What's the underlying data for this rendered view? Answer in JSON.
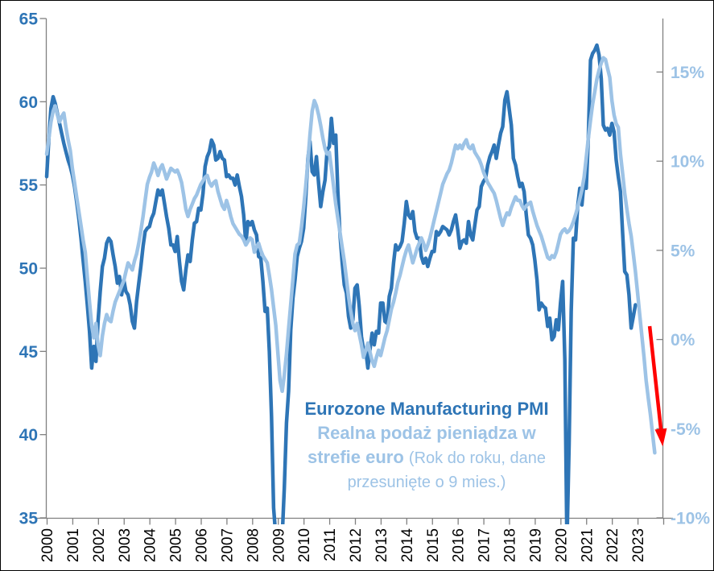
{
  "annotation": {
    "line1": "Eurozone Manufacturing PMI",
    "line2": "Realna podaż pieniądza w",
    "line3_bold": "strefie euro ",
    "line3_regular": "(Rok do roku, dane",
    "line4": "przesunięte o 9 mies.)"
  },
  "chart_data": {
    "type": "line",
    "background": "#FFFFFF",
    "frame_border": "#000000",
    "axis_line_color": "#808080",
    "grid": "off",
    "legend_position": "none (in-plot text annotation)",
    "left_axis": {
      "label_color": "#2E75B6",
      "min": 35,
      "max": 65,
      "ticks": [
        65,
        60,
        55,
        50,
        45,
        40,
        35
      ]
    },
    "right_axis": {
      "label_color": "#9DC3E6",
      "min": -10,
      "max": 18,
      "tick_values": [
        15,
        10,
        5,
        0,
        -5,
        -10
      ],
      "tick_labels": [
        "15%",
        "10%",
        "5%",
        "0%",
        "-5%",
        "-10%"
      ]
    },
    "x_axis": {
      "label_color": "#000000",
      "labels": [
        "2000",
        "2001",
        "2002",
        "2003",
        "2004",
        "2005",
        "2006",
        "2007",
        "2008",
        "2009",
        "2010",
        "2011",
        "2012",
        "2013",
        "2014",
        "2015",
        "2016",
        "2017",
        "2018",
        "2019",
        "2020",
        "2021",
        "2022",
        "2023"
      ],
      "tick_years": [
        2000,
        2001,
        2002,
        2003,
        2004,
        2005,
        2006,
        2007,
        2008,
        2009,
        2010,
        2011,
        2012,
        2013,
        2014,
        2015,
        2016,
        2017,
        2018,
        2019,
        2020,
        2021,
        2022,
        2023,
        2024
      ],
      "start": 2000,
      "end": 2024
    },
    "series": [
      {
        "name": "Eurozone Manufacturing PMI",
        "axis": "left",
        "color": "#2E75B6",
        "start_year": 2000.0,
        "frequency": "monthly",
        "values": [
          55.5,
          57.8,
          59.6,
          60.3,
          59.9,
          59.3,
          58.7,
          58.1,
          57.5,
          57.0,
          56.5,
          56.1,
          55.6,
          54.9,
          54.0,
          53.0,
          51.8,
          50.5,
          49.2,
          47.8,
          46.2,
          44.0,
          45.3,
          44.4,
          46.8,
          48.6,
          50.1,
          50.6,
          51.5,
          51.8,
          51.6,
          50.8,
          50.1,
          49.1,
          49.5,
          48.4,
          49.3,
          48.6,
          48.4,
          47.8,
          46.8,
          46.4,
          48.0,
          49.1,
          50.1,
          51.3,
          52.2,
          52.4,
          52.5,
          53.0,
          53.3,
          54.0,
          54.7,
          54.4,
          54.7,
          53.9,
          53.1,
          52.4,
          51.4,
          51.4,
          51.0,
          51.9,
          50.4,
          49.2,
          48.7,
          49.9,
          50.8,
          50.4,
          51.7,
          52.7,
          52.8,
          53.6,
          53.5,
          54.5,
          56.1,
          56.7,
          57.0,
          57.7,
          57.4,
          56.5,
          56.6,
          57.0,
          56.6,
          56.5,
          55.5,
          55.6,
          55.4,
          55.4,
          55.0,
          55.6,
          54.9,
          54.3,
          53.2,
          51.5,
          52.8,
          52.6,
          52.8,
          52.3,
          52.0,
          50.7,
          50.6,
          49.2,
          47.4,
          47.6,
          45.0,
          41.1,
          35.6,
          33.9,
          34.4,
          33.5,
          33.9,
          36.8,
          40.7,
          42.6,
          46.3,
          48.2,
          49.3,
          50.7,
          51.2,
          51.6,
          52.4,
          54.2,
          56.6,
          57.6,
          55.8,
          55.6,
          56.7,
          55.1,
          53.7,
          54.6,
          55.3,
          57.1,
          57.3,
          59.0,
          57.5,
          58.0,
          54.6,
          52.0,
          50.4,
          49.0,
          48.5,
          47.1,
          46.4,
          46.9,
          48.8,
          49.0,
          47.7,
          45.9,
          45.1,
          45.1,
          44.0,
          45.1,
          46.1,
          45.4,
          46.2,
          46.1,
          47.9,
          47.9,
          46.8,
          46.7,
          48.3,
          48.8,
          50.3,
          51.4,
          51.1,
          51.3,
          51.6,
          52.7,
          54.0,
          53.2,
          53.0,
          53.4,
          52.2,
          51.8,
          51.8,
          50.7,
          50.3,
          50.6,
          50.1,
          50.6,
          51.0,
          51.0,
          52.2,
          52.0,
          52.2,
          52.5,
          52.4,
          52.3,
          52.0,
          52.3,
          52.8,
          53.2,
          52.3,
          51.2,
          51.6,
          51.7,
          51.5,
          52.8,
          52.0,
          51.7,
          52.6,
          53.5,
          53.7,
          54.9,
          55.2,
          55.4,
          56.2,
          56.7,
          57.0,
          57.4,
          56.6,
          57.4,
          58.1,
          58.5,
          60.1,
          60.6,
          59.6,
          58.6,
          56.6,
          56.2,
          55.5,
          54.9,
          55.1,
          54.6,
          53.2,
          52.0,
          51.8,
          51.4,
          50.5,
          49.3,
          47.5,
          47.9,
          47.7,
          47.6,
          46.5,
          47.0,
          45.7,
          45.9,
          46.9,
          46.3,
          47.9,
          49.2,
          44.5,
          33.4,
          39.4,
          47.4,
          51.8,
          51.7,
          53.7,
          54.8,
          53.8,
          55.2,
          54.8,
          57.9,
          62.5,
          62.9,
          63.1,
          63.4,
          62.8,
          61.4,
          58.6,
          58.3,
          58.4,
          58.0,
          58.7,
          58.2,
          56.5,
          55.5,
          54.6,
          52.1,
          49.8,
          49.6,
          48.4,
          46.4,
          47.1,
          47.8
        ]
      },
      {
        "name": "Realna podaż pieniądza w strefie euro (Rok do roku, dane przesunięte o 9 mies.)",
        "axis": "right",
        "color": "#9DC3E6",
        "start_year": 2000.0,
        "frequency": "monthly",
        "values": [
          10.4,
          11.3,
          12.2,
          12.8,
          13.1,
          12.6,
          12.2,
          12.5,
          12.7,
          11.9,
          11.2,
          10.6,
          9.6,
          8.8,
          8.0,
          7.2,
          6.4,
          5.6,
          4.9,
          3.5,
          2.1,
          0.8,
          0.1,
          0.9,
          -0.3,
          -0.9,
          0.2,
          0.9,
          1.4,
          1.1,
          1.0,
          1.6,
          2.1,
          2.4,
          2.7,
          3.0,
          3.3,
          3.8,
          4.3,
          4.1,
          3.9,
          4.4,
          4.8,
          5.4,
          6.1,
          6.9,
          7.8,
          8.7,
          9.1,
          9.4,
          9.9,
          9.6,
          9.2,
          9.6,
          9.8,
          9.4,
          9.0,
          9.3,
          9.6,
          9.5,
          9.4,
          9.5,
          9.2,
          8.8,
          8.1,
          7.3,
          6.9,
          7.3,
          7.6,
          7.9,
          8.1,
          8.4,
          8.7,
          8.9,
          9.1,
          9.2,
          8.8,
          8.6,
          8.8,
          8.9,
          8.3,
          7.9,
          7.5,
          7.3,
          7.8,
          7.4,
          6.9,
          6.5,
          6.3,
          6.1,
          5.9,
          5.8,
          5.6,
          5.3,
          5.5,
          5.7,
          5.6,
          4.9,
          5.2,
          5.4,
          5.0,
          4.7,
          4.5,
          4.3,
          3.6,
          2.8,
          1.8,
          0.8,
          -0.8,
          -2.3,
          -2.9,
          -2.0,
          -0.8,
          0.6,
          2.0,
          3.4,
          4.8,
          5.3,
          5.4,
          6.3,
          7.4,
          8.6,
          10.0,
          11.5,
          12.8,
          13.4,
          13.1,
          12.6,
          12.0,
          11.3,
          10.7,
          10.4,
          10.5,
          9.6,
          8.6,
          7.6,
          6.8,
          6.0,
          5.2,
          4.4,
          3.4,
          2.4,
          1.6,
          0.9,
          0.5,
          0.9,
          0.3,
          -0.3,
          -1.0,
          -0.6,
          -0.2,
          -0.7,
          -1.2,
          -1.5,
          -1.0,
          -0.6,
          -0.9,
          -0.4,
          0.1,
          0.5,
          1.1,
          1.7,
          2.1,
          2.6,
          3.2,
          3.6,
          4.1,
          4.6,
          5.0,
          5.3,
          4.8,
          4.3,
          4.7,
          5.1,
          5.4,
          5.7,
          5.4,
          5.0,
          5.3,
          5.7,
          6.2,
          6.7,
          7.2,
          7.7,
          8.2,
          8.7,
          9.0,
          9.3,
          9.5,
          9.9,
          10.4,
          10.9,
          10.7,
          10.9,
          10.7,
          11.0,
          11.2,
          10.8,
          10.7,
          10.9,
          10.5,
          10.3,
          10.1,
          9.8,
          9.4,
          9.1,
          8.8,
          8.6,
          8.4,
          8.2,
          7.8,
          7.3,
          6.8,
          6.4,
          6.8,
          7.1,
          7.0,
          7.4,
          7.7,
          8.0,
          7.8,
          7.8,
          7.5,
          7.3,
          7.5,
          7.6,
          7.7,
          7.2,
          6.8,
          6.4,
          6.1,
          5.8,
          5.4,
          5.0,
          4.6,
          4.5,
          4.7,
          4.6,
          4.9,
          5.4,
          5.9,
          6.1,
          6.2,
          6.0,
          6.1,
          6.3,
          6.6,
          7.0,
          7.4,
          7.9,
          8.4,
          9.1,
          10.2,
          11.3,
          12.3,
          13.2,
          13.9,
          14.6,
          15.1,
          15.5,
          15.8,
          15.7,
          15.2,
          14.7,
          13.4,
          12.6,
          12.1,
          11.9,
          10.4,
          9.3,
          8.2,
          7.3,
          6.5,
          5.8,
          4.8,
          3.8,
          2.6,
          1.4,
          0.2,
          -1.0,
          -2.3,
          -3.3,
          -4.2,
          -5.3,
          -6.35
        ]
      }
    ],
    "arrow": {
      "name": "red-trend-arrow",
      "color": "#FF0000",
      "axis": "right",
      "from_year": 2023.47,
      "from_value": 0.75,
      "to_year": 2023.98,
      "to_value": -6.0
    }
  }
}
